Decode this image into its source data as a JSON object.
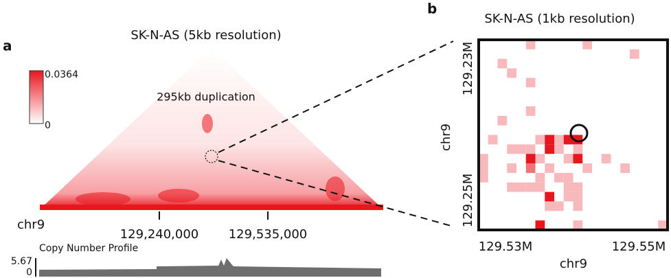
{
  "panel_a": {
    "label": "a",
    "title": "SK-N-AS (5kb resolution)",
    "colorbar": {
      "max": 0.0364,
      "min": 0
    },
    "annotation": "295kb duplication",
    "chrom": "chr9",
    "xticks": [
      "129,240,000",
      "129,535,000"
    ],
    "track": {
      "title": "Copy Number Profile",
      "max": 5.67,
      "min": 0
    }
  },
  "panel_b": {
    "label": "b",
    "title": "SK-N-AS (1kb resolution)",
    "xlabel": "chr9",
    "ylabel": "chr9",
    "xticks": [
      "129.53M",
      "129.55M"
    ],
    "yticks": [
      "129.23M",
      "129.25M"
    ],
    "grid_size": 20,
    "cells": [
      [
        5,
        0,
        0.3
      ],
      [
        11,
        0,
        0.3
      ],
      [
        16,
        1,
        0.3
      ],
      [
        2,
        2,
        0.3
      ],
      [
        3,
        3,
        0.3
      ],
      [
        5,
        4,
        0.3
      ],
      [
        5,
        7,
        0.3
      ],
      [
        2,
        8,
        0.3
      ],
      [
        1,
        10,
        0.3
      ],
      [
        6,
        10,
        0.3
      ],
      [
        7,
        10,
        1
      ],
      [
        8,
        10,
        0.3
      ],
      [
        9,
        10,
        1
      ],
      [
        10,
        10,
        1
      ],
      [
        3,
        11,
        0.3
      ],
      [
        4,
        11,
        0.3
      ],
      [
        5,
        11,
        0.3
      ],
      [
        7,
        11,
        1
      ],
      [
        8,
        11,
        0.3
      ],
      [
        10,
        11,
        0.3
      ],
      [
        0,
        12,
        0.3
      ],
      [
        5,
        12,
        1
      ],
      [
        6,
        12,
        0.3
      ],
      [
        9,
        12,
        0.3
      ],
      [
        10,
        12,
        1
      ],
      [
        13,
        12,
        0.3
      ],
      [
        0,
        13,
        0.3
      ],
      [
        3,
        13,
        0.3
      ],
      [
        5,
        13,
        0.6
      ],
      [
        7,
        13,
        0.3
      ],
      [
        11,
        13,
        0.3
      ],
      [
        15,
        13,
        0.3
      ],
      [
        0,
        14,
        0.3
      ],
      [
        6,
        14,
        0.3
      ],
      [
        8,
        14,
        0.3
      ],
      [
        9,
        14,
        0.3
      ],
      [
        3,
        15,
        0.3
      ],
      [
        4,
        15,
        0.3
      ],
      [
        5,
        15,
        0.3
      ],
      [
        6,
        15,
        0.3
      ],
      [
        9,
        15,
        0.3
      ],
      [
        10,
        15,
        0.3
      ],
      [
        7,
        16,
        1
      ],
      [
        9,
        16,
        0.3
      ],
      [
        10,
        16,
        0.3
      ],
      [
        7,
        17,
        0.3
      ],
      [
        8,
        17,
        0.3
      ],
      [
        10,
        17,
        0.3
      ],
      [
        6,
        19,
        1
      ],
      [
        10,
        19,
        0.3
      ],
      [
        19,
        19,
        0.3
      ]
    ]
  }
}
